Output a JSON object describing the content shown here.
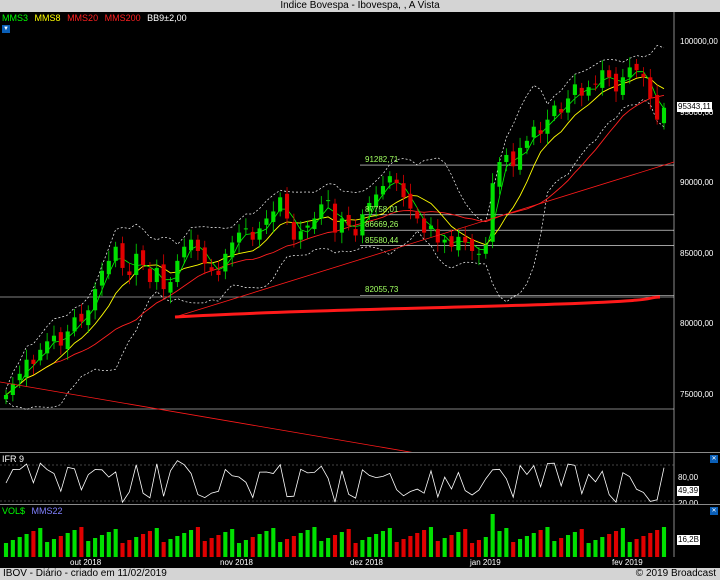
{
  "window": {
    "title": "Indice Bovespa - Ibovespa, , A Vista"
  },
  "price_legend": [
    {
      "label": "MMS3",
      "color": "#00ff00"
    },
    {
      "label": "MMS8",
      "color": "#ffff00"
    },
    {
      "label": "MMS20",
      "color": "#ff2020"
    },
    {
      "label": "MMS200",
      "color": "#ff2020"
    },
    {
      "label": "BB9±2,00",
      "color": "#ffffff"
    }
  ],
  "price_axis": [
    "100000,00",
    "95000,00",
    "90000,00",
    "85000,00",
    "80000,00",
    "75000,00"
  ],
  "price_readout": "95343,11",
  "levels": [
    {
      "label": "91282,71",
      "value": 91282.71
    },
    {
      "label": "87758,01",
      "value": 87758.01
    },
    {
      "label": "86669,26",
      "value": 86669.26
    },
    {
      "label": "85580,44",
      "value": 85580.44
    },
    {
      "label": "82055,73",
      "value": 82055.73
    }
  ],
  "ifr": {
    "label": "IFR 9",
    "axis": [
      "80,00",
      "20,00"
    ],
    "readout": "49,39"
  },
  "volume": {
    "label": "VOL$",
    "ma_label": "MMS22",
    "readout": "16,2B"
  },
  "time_axis": [
    "out 2018",
    "nov 2018",
    "dez 2018",
    "jan 2019",
    "fev 2019"
  ],
  "footer": {
    "left": "IBOV - Diário - criado em 11/02/2019",
    "right": "© 2019 Broadcast"
  },
  "chart_data": {
    "type": "candlestick",
    "title": "Indice Bovespa - Ibovespa, , A Vista",
    "ylim": [
      72000,
      102000
    ],
    "y_ticks": [
      75000,
      80000,
      85000,
      90000,
      95000,
      100000
    ],
    "x_ticks": [
      "out 2018",
      "nov 2018",
      "dez 2018",
      "jan 2019",
      "fev 2019"
    ],
    "close": [
      75000,
      75800,
      76500,
      77500,
      77200,
      78200,
      78800,
      79200,
      78500,
      79500,
      80500,
      80200,
      81000,
      82500,
      83800,
      84500,
      85500,
      84000,
      83500,
      85000,
      84200,
      83000,
      84000,
      82500,
      83000,
      84500,
      85500,
      86000,
      85200,
      84300,
      83800,
      83500,
      85000,
      85800,
      86500,
      86800,
      86000,
      86800,
      87500,
      88000,
      89000,
      87500,
      86000,
      86600,
      87000,
      87500,
      88500,
      88800,
      86500,
      87500,
      87000,
      86300,
      87800,
      88600,
      89200,
      89800,
      90500,
      90000,
      89000,
      88200,
      87500,
      86500,
      87000,
      85800,
      86000,
      85500,
      86200,
      85800,
      85200,
      85000,
      85600,
      90000,
      91500,
      92000,
      91200,
      92500,
      93000,
      94000,
      93500,
      94500,
      95500,
      95000,
      96000,
      97000,
      96200,
      96800,
      97000,
      98000,
      97500,
      96500,
      97500,
      98200,
      98000,
      97500,
      96000,
      94500,
      95343
    ],
    "ifr_note": "IFR 9 oscillates between 20 and 80 reference lines"
  }
}
